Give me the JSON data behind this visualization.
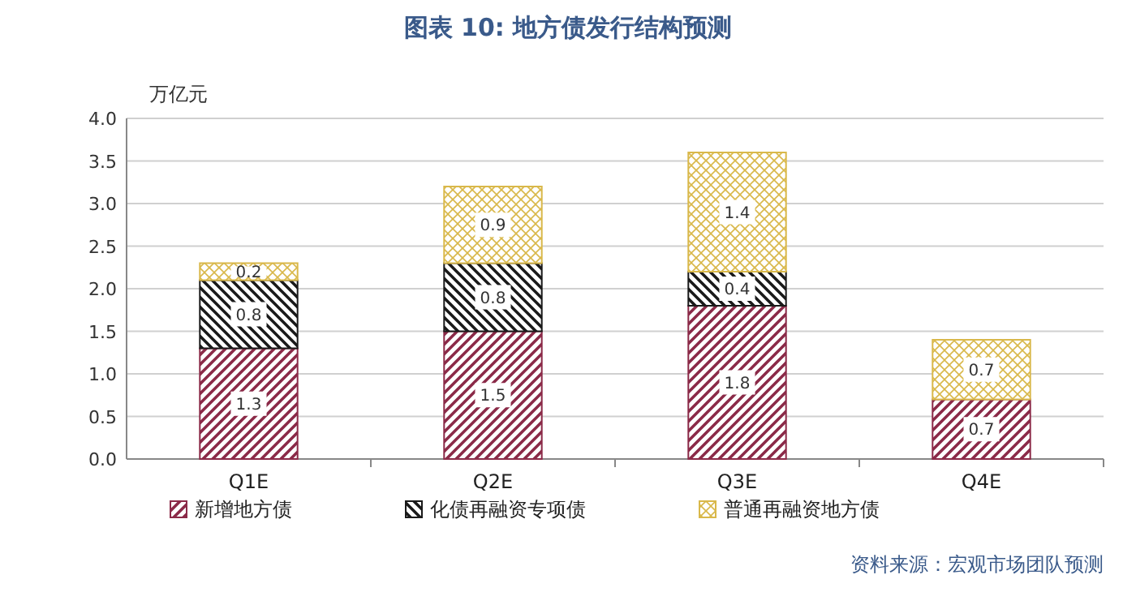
{
  "chart_data": {
    "type": "bar",
    "title": "图表 10: 地方债发行结构预测",
    "ylabel": "万亿元",
    "categories": [
      "Q1E",
      "Q2E",
      "Q3E",
      "Q4E"
    ],
    "stacked": true,
    "data_labels": true,
    "grid": "y",
    "legend": "bottom",
    "ylim": [
      0,
      4
    ],
    "yticks": [
      {
        "value": 0,
        "label": "0.0"
      },
      {
        "value": 0.5,
        "label": "0.5"
      },
      {
        "value": 1,
        "label": "1.0"
      },
      {
        "value": 1.5,
        "label": "1.5"
      },
      {
        "value": 2,
        "label": "2.0"
      },
      {
        "value": 2.5,
        "label": "2.5"
      },
      {
        "value": 3,
        "label": "3.0"
      },
      {
        "value": 3.5,
        "label": "3.5"
      },
      {
        "value": 4,
        "label": "4.0"
      }
    ],
    "series": [
      {
        "name": "新增地方债",
        "color": "#8b2a48",
        "values": [
          1.3,
          1.5,
          1.8,
          0.7
        ]
      },
      {
        "name": "化债再融资专项债",
        "color": "#1a1a1a",
        "values": [
          0.8,
          0.8,
          0.4,
          null
        ]
      },
      {
        "name": "普通再融资地方债",
        "color": "#d9b84a",
        "values": [
          0.2,
          0.9,
          1.4,
          0.7
        ]
      }
    ],
    "annotations": [
      "资料来源：宏观市场团队预测"
    ]
  }
}
